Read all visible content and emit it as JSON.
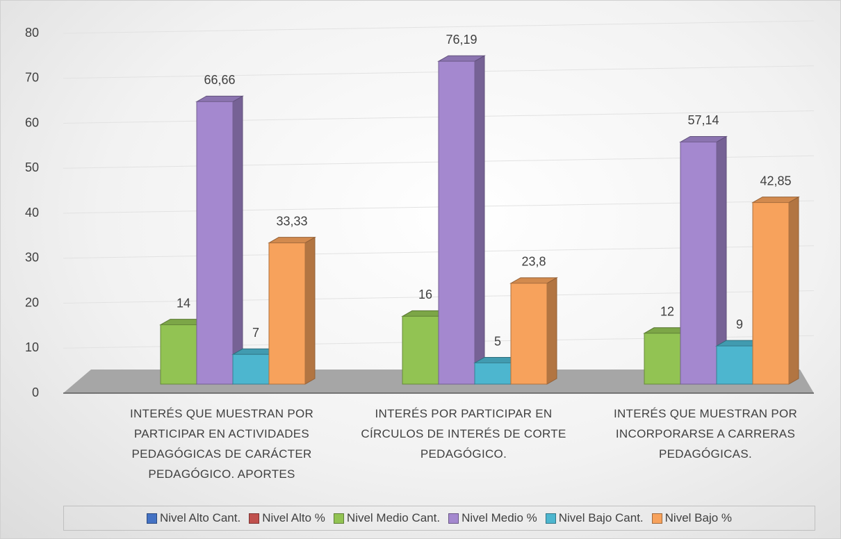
{
  "chart_data": {
    "type": "bar3d",
    "categories": [
      "INTERÉS QUE MUESTRAN POR PARTICIPAR EN ACTIVIDADES PEDAGÓGICAS DE CARÁCTER PEDAGÓGICO. APORTES",
      "INTERÉS POR PARTICIPAR EN CÍRCULOS DE INTERÉS DE CORTE PEDAGÓGICO.",
      "INTERÉS QUE MUESTRAN POR INCORPORARSE A CARRERAS PEDAGÓGICAS."
    ],
    "series": [
      {
        "name": "Nivel Alto Cant.",
        "color": "#4472c4",
        "values": [
          null,
          null,
          null
        ]
      },
      {
        "name": "Nivel Alto %",
        "color": "#c0504d",
        "values": [
          null,
          null,
          null
        ]
      },
      {
        "name": "Nivel Medio Cant.",
        "color": "#92c353",
        "values": [
          14,
          16,
          12
        ]
      },
      {
        "name": "Nivel Medio %",
        "color": "#a488cf",
        "values": [
          66.66,
          76.19,
          57.14
        ],
        "value_labels": [
          "66,66",
          "76,19",
          "57,14"
        ]
      },
      {
        "name": "Nivel Bajo Cant.",
        "color": "#4db6cf",
        "values": [
          7,
          5,
          9
        ]
      },
      {
        "name": "Nivel Bajo %",
        "color": "#f7a25c",
        "values": [
          33.33,
          23.8,
          42.85
        ],
        "value_labels": [
          "33,33",
          "23,8",
          "42,85"
        ]
      }
    ],
    "ylim": [
      0,
      80
    ],
    "yticks": [
      0,
      10,
      20,
      30,
      40,
      50,
      60,
      70,
      80
    ],
    "grid": true,
    "legend": "bottom"
  }
}
